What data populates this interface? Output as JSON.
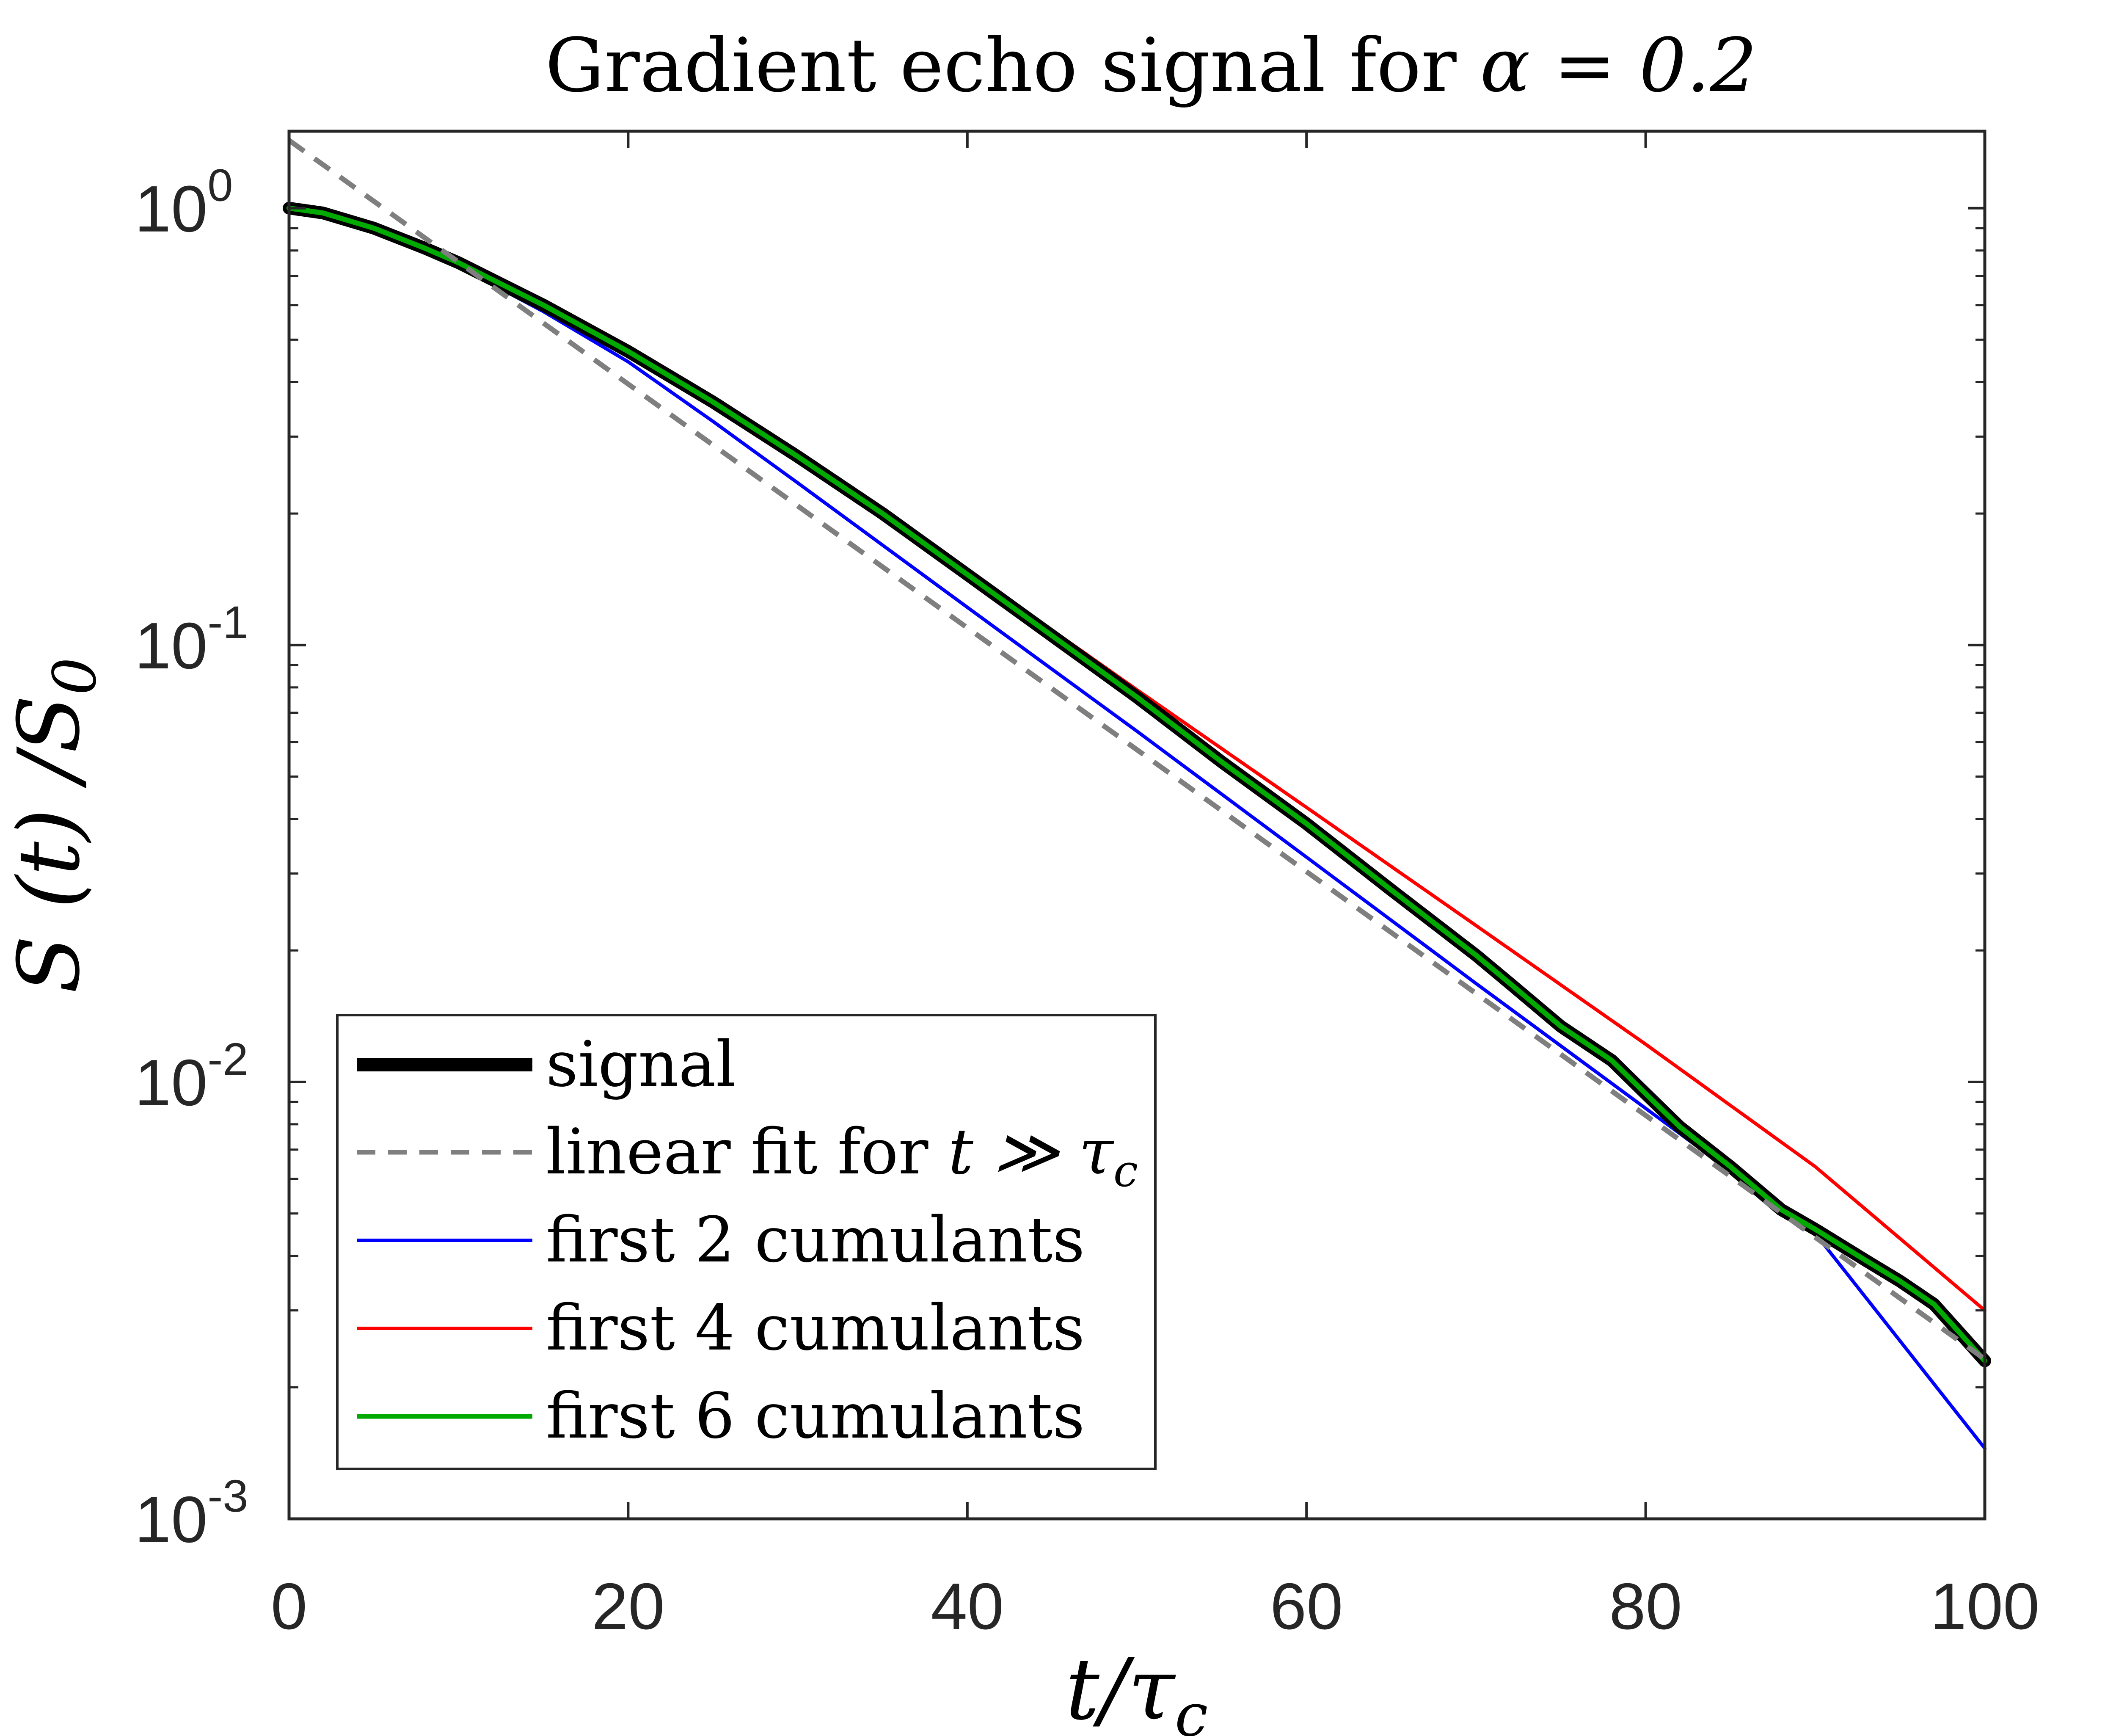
{
  "chart_data": {
    "type": "line",
    "title_prefix": "Gradient echo signal for ",
    "title_math": "α = 0.2",
    "xlabel": "t/τ",
    "xlabel_sub": "c",
    "ylabel": "S (t) /S",
    "ylabel_sub": "0",
    "x_scale": "linear",
    "y_scale": "log",
    "xlim": [
      0,
      100
    ],
    "ylim": [
      0.001,
      1.5
    ],
    "x_ticks": [
      0,
      20,
      40,
      60,
      80,
      100
    ],
    "x_tick_labels": [
      "0",
      "20",
      "40",
      "60",
      "80",
      "100"
    ],
    "y_ticks": [
      1,
      0.1,
      0.01,
      0.001
    ],
    "y_tick_labels": [
      {
        "base": "10",
        "exp": "0"
      },
      {
        "base": "10",
        "exp": "-1"
      },
      {
        "base": "10",
        "exp": "-2"
      },
      {
        "base": "10",
        "exp": "-3"
      }
    ],
    "grid": false,
    "legend_position": "bottom-left",
    "series": [
      {
        "name": "signal",
        "legend": "signal",
        "color": "#000000",
        "style": "solid",
        "weight": "thick",
        "x": [
          0,
          2,
          5,
          8,
          10,
          15,
          20,
          25,
          30,
          35,
          40,
          45,
          50,
          55,
          60,
          65,
          70,
          72,
          75,
          78,
          80,
          82,
          85,
          88,
          90,
          93,
          95,
          97,
          100
        ],
        "y": [
          1.0,
          0.975,
          0.9,
          0.81,
          0.75,
          0.6,
          0.47,
          0.36,
          0.27,
          0.2,
          0.145,
          0.105,
          0.076,
          0.054,
          0.039,
          0.0275,
          0.0195,
          0.0168,
          0.0134,
          0.0112,
          0.0094,
          0.0079,
          0.0064,
          0.0051,
          0.0046,
          0.0039,
          0.0035,
          0.0031,
          0.0023
        ]
      },
      {
        "name": "linear-fit",
        "legend": "linear fit for ",
        "legend_math": "t ≫ τ",
        "legend_math_sub": "c",
        "color": "#7f7f7f",
        "style": "dashed",
        "weight": "medium",
        "x": [
          0,
          100
        ],
        "y": [
          1.43,
          0.00232
        ]
      },
      {
        "name": "first-2-cumulants",
        "legend": "first 2 cumulants",
        "color": "#0000ff",
        "style": "solid",
        "weight": "thin",
        "x": [
          0,
          2,
          5,
          8,
          10,
          15,
          20,
          25,
          30,
          40,
          50,
          60,
          70,
          80,
          90,
          100
        ],
        "y": [
          1.0,
          0.97,
          0.89,
          0.8,
          0.735,
          0.58,
          0.445,
          0.325,
          0.235,
          0.122,
          0.0635,
          0.0327,
          0.0168,
          0.0087,
          0.0045,
          0.00145
        ]
      },
      {
        "name": "first-4-cumulants",
        "legend": "first 4 cumulants",
        "color": "#ff0000",
        "style": "solid",
        "weight": "thin",
        "x": [
          0,
          2,
          5,
          8,
          10,
          15,
          20,
          25,
          30,
          40,
          50,
          60,
          70,
          80,
          90,
          100
        ],
        "y": [
          1.0,
          0.975,
          0.9,
          0.81,
          0.75,
          0.6,
          0.47,
          0.36,
          0.27,
          0.148,
          0.079,
          0.0425,
          0.0228,
          0.0122,
          0.0064,
          0.003
        ]
      },
      {
        "name": "first-6-cumulants",
        "legend": "first 6 cumulants",
        "color": "#00aa00",
        "style": "solid",
        "weight": "medium",
        "x": [
          0,
          2,
          5,
          8,
          10,
          15,
          20,
          25,
          30,
          35,
          40,
          45,
          50,
          55,
          60,
          65,
          70,
          72,
          75,
          78,
          80,
          82,
          85,
          88,
          90,
          93,
          95,
          97,
          100
        ],
        "y": [
          1.0,
          0.975,
          0.9,
          0.81,
          0.75,
          0.6,
          0.47,
          0.36,
          0.27,
          0.2,
          0.145,
          0.105,
          0.076,
          0.054,
          0.039,
          0.0275,
          0.0195,
          0.0168,
          0.0134,
          0.0112,
          0.0094,
          0.0079,
          0.0064,
          0.0051,
          0.0046,
          0.0039,
          0.0035,
          0.0031,
          0.0023
        ]
      }
    ]
  }
}
